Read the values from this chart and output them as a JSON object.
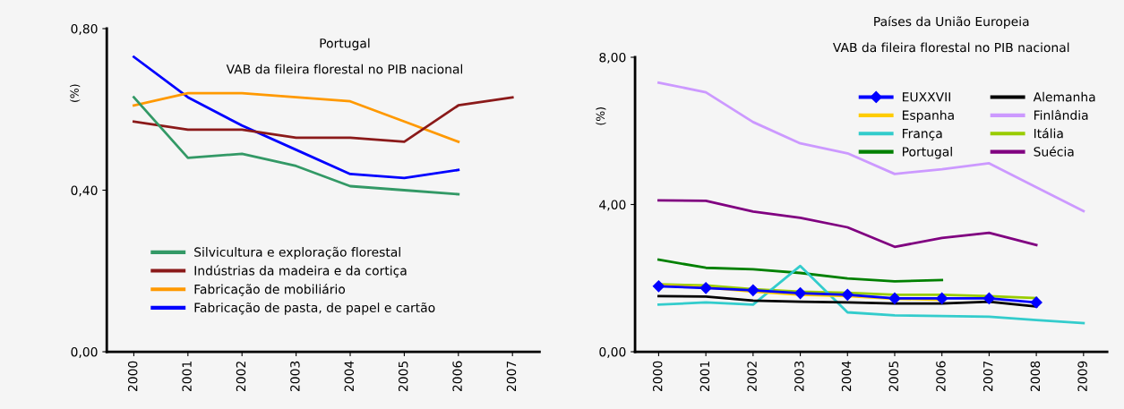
{
  "chart_data": [
    {
      "type": "line",
      "title": "Portugal",
      "subtitle": "VAB da fileira florestal no PIB nacional",
      "ylabel": "(%)",
      "categories": [
        "2000",
        "2001",
        "2002",
        "2003",
        "2004",
        "2005",
        "2006",
        "2007"
      ],
      "ylim": [
        0,
        0.8
      ],
      "yticks": [
        {
          "value": 0,
          "label": "0,00"
        },
        {
          "value": 0.4,
          "label": "0,40"
        },
        {
          "value": 0.8,
          "label": "0,80"
        }
      ],
      "grid": false,
      "legend": "bottom left",
      "marker": "none",
      "line_style": "solid",
      "series": [
        {
          "name": "Silvicultura e exploração florestal",
          "color": "#339966",
          "values": [
            0.63,
            0.48,
            0.49,
            0.46,
            0.41,
            0.4,
            0.39,
            null
          ]
        },
        {
          "name": "Indústrias da madeira e da cortiça",
          "color": "#8b1a1a",
          "values": [
            0.57,
            0.55,
            0.55,
            0.53,
            0.53,
            0.52,
            0.61,
            0.63
          ]
        },
        {
          "name": "Fabricação de mobiliário",
          "color": "#ff9900",
          "values": [
            0.61,
            0.64,
            0.64,
            0.63,
            0.62,
            0.57,
            0.52,
            null
          ]
        },
        {
          "name": "Fabricação de pasta, de papel e cartão",
          "color": "#0000ff",
          "values": [
            0.73,
            0.63,
            0.56,
            0.5,
            0.44,
            0.43,
            0.45,
            null
          ]
        }
      ]
    },
    {
      "type": "line",
      "title": "Países da União Europeia",
      "subtitle": "VAB da fileira florestal no PIB nacional",
      "ylabel": "(%)",
      "categories": [
        "2000",
        "2001",
        "2002",
        "2003",
        "2004",
        "2005",
        "2006",
        "2007",
        "2008",
        "2009"
      ],
      "ylim": [
        0,
        8
      ],
      "yticks": [
        {
          "value": 0,
          "label": "0,00"
        },
        {
          "value": 4,
          "label": "4,00"
        },
        {
          "value": 8,
          "label": "8,00"
        }
      ],
      "grid": false,
      "legend": "top right",
      "marker": "none",
      "line_style": "solid",
      "series": [
        {
          "name": "EUXXVII",
          "color": "#0000ff",
          "marker": "diamond",
          "values": [
            1.78,
            1.73,
            1.67,
            1.59,
            1.55,
            1.45,
            1.45,
            1.45,
            1.34,
            null
          ]
        },
        {
          "name": "Alemanha",
          "color": "#000000",
          "values": [
            1.51,
            1.5,
            1.39,
            1.36,
            1.34,
            1.31,
            1.31,
            1.36,
            1.23,
            null
          ]
        },
        {
          "name": "Espanha",
          "color": "#ffcc00",
          "values": [
            1.8,
            1.75,
            1.63,
            1.55,
            1.51,
            1.44,
            1.41,
            null,
            null,
            null
          ]
        },
        {
          "name": "Finlândia",
          "color": "#cc99ff",
          "values": [
            7.31,
            7.05,
            6.24,
            5.66,
            5.39,
            4.83,
            4.96,
            5.12,
            4.47,
            3.82
          ]
        },
        {
          "name": "França",
          "color": "#33cccc",
          "values": [
            1.28,
            1.34,
            1.28,
            2.33,
            1.07,
            0.99,
            0.97,
            0.95,
            0.86,
            0.78
          ]
        },
        {
          "name": "Itália",
          "color": "#99cc00",
          "values": [
            1.83,
            1.8,
            1.7,
            1.63,
            1.6,
            1.55,
            1.55,
            1.51,
            1.46,
            null
          ]
        },
        {
          "name": "Portugal",
          "color": "#008000",
          "values": [
            2.5,
            2.28,
            2.24,
            2.14,
            1.99,
            1.91,
            1.95,
            null,
            null,
            null
          ]
        },
        {
          "name": "Suécia",
          "color": "#800080",
          "values": [
            4.11,
            4.1,
            3.81,
            3.64,
            3.38,
            2.85,
            3.09,
            3.23,
            2.9,
            null
          ]
        }
      ]
    }
  ]
}
